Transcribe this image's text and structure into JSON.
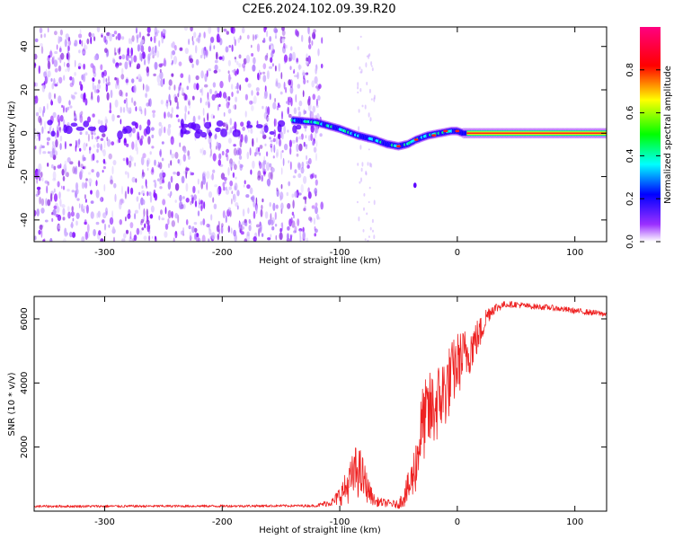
{
  "title": "C2E6.2024.102.09.39.R20",
  "chart_data": [
    {
      "type": "heatmap",
      "xlabel": "Height of straight line (km)",
      "ylabel": "Frequency (Hz)",
      "xlim": [
        -360,
        127
      ],
      "ylim": [
        -50,
        49
      ],
      "xticks": [
        -300,
        -200,
        -100,
        0,
        100
      ],
      "yticks": [
        -40,
        -20,
        0,
        20,
        40
      ],
      "colorbar": {
        "label": "Normalized spectral amplitude",
        "range": [
          0,
          1
        ],
        "ticks": [
          "0.0",
          "0.2",
          "0.4",
          "0.6",
          "0.8"
        ],
        "colors": [
          "#ffffff",
          "#9b30ff",
          "#0000ff",
          "#00ffff",
          "#00ff00",
          "#ffff00",
          "#ff0000",
          "#ff0080"
        ]
      },
      "ridge": {
        "x": [
          -140,
          -120,
          -100,
          -85,
          -70,
          -60,
          -50,
          -42,
          -35,
          -25,
          -15,
          -5,
          0,
          5,
          20,
          60,
          100,
          127
        ],
        "y": [
          6,
          5,
          2,
          -1,
          -3,
          -5,
          -6,
          -5,
          -3,
          -1,
          0,
          1,
          1,
          0,
          0,
          0,
          0,
          0
        ]
      },
      "noise_region": {
        "x": [
          -360,
          -115
        ],
        "y": [
          -50,
          49
        ]
      }
    },
    {
      "type": "line",
      "xlabel": "Height of straight line (km)",
      "ylabel": "SNR (10 * v/v)",
      "xlim": [
        -360,
        127
      ],
      "ylim": [
        0,
        6700
      ],
      "xticks": [
        -300,
        -200,
        -100,
        0,
        100
      ],
      "yticks": [
        2000,
        4000,
        6000
      ],
      "color": "#ee2222",
      "x": [
        -360,
        -200,
        -120,
        -105,
        -95,
        -85,
        -80,
        -75,
        -70,
        -60,
        -50,
        -40,
        -35,
        -30,
        -25,
        -20,
        -15,
        -10,
        -5,
        0,
        10,
        20,
        25,
        30,
        40,
        50,
        60,
        80,
        100,
        127
      ],
      "y": [
        150,
        160,
        170,
        300,
        700,
        1300,
        1000,
        600,
        300,
        250,
        200,
        800,
        1500,
        2700,
        3000,
        3200,
        3500,
        3800,
        4200,
        4600,
        5000,
        5600,
        6100,
        6300,
        6450,
        6450,
        6400,
        6350,
        6250,
        6150
      ],
      "noise_amp": [
        40,
        40,
        40,
        150,
        500,
        900,
        700,
        350,
        150,
        120,
        120,
        600,
        900,
        1200,
        1300,
        1300,
        1200,
        1200,
        1100,
        1000,
        800,
        500,
        300,
        200,
        100,
        100,
        90,
        90,
        90,
        90
      ]
    }
  ]
}
